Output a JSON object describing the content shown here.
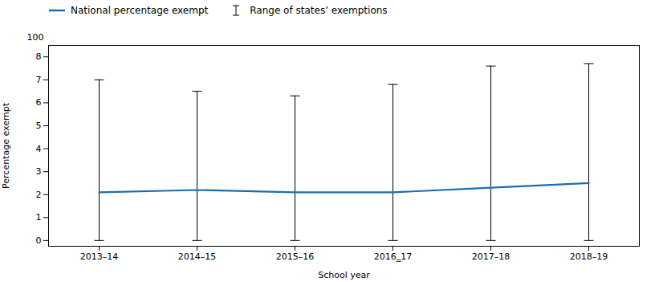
{
  "chart_data": {
    "type": "line",
    "xlabel": "School year",
    "ylabel": "Percentage exempt",
    "categories": [
      "2013–14",
      "2014–15",
      "2015–16",
      "2016‗17",
      "2017–18",
      "2018–19"
    ],
    "series": [
      {
        "name": "National percentage exempt",
        "type": "line",
        "color": "#1a6faf",
        "values": [
          2.1,
          2.2,
          2.1,
          2.1,
          2.3,
          2.5
        ]
      },
      {
        "name": "Range of states’ exemptions",
        "type": "errorbar",
        "color": "#000000",
        "lower": [
          0.0,
          0.0,
          0.0,
          0.0,
          0.0,
          0.0
        ],
        "upper": [
          7.0,
          6.5,
          6.3,
          6.8,
          7.6,
          7.7
        ]
      }
    ],
    "ylim": [
      -0.25,
      8.5
    ],
    "yticks": [
      0,
      1,
      2,
      3,
      4,
      5,
      6,
      7,
      8
    ],
    "annotations": [
      "100"
    ],
    "legend": "upper left",
    "grid": false
  }
}
